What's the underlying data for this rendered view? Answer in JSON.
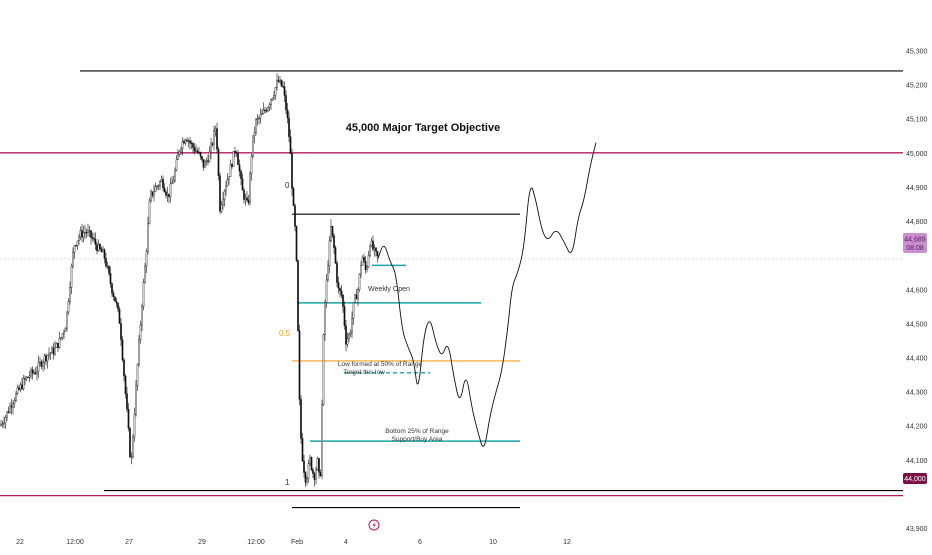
{
  "colors": {
    "background": "#ffffff",
    "candle": "#111111",
    "target_line": "#b5195e",
    "level_line": "#000000",
    "teal": "#1aa3a3",
    "fib_half": "#f0a020",
    "dashed_low": "#1aa3a3",
    "axis_text": "#333333",
    "price_badge_bg": "#c98fcf",
    "price_badge_text": "#5a1a60",
    "target_badge_bg": "#7a1046",
    "projection": "#111111"
  },
  "chart_data": {
    "type": "candlestick",
    "title": "",
    "x_ticks": [
      "22",
      "12:00",
      "27",
      "29",
      "12:00",
      "Feb",
      "4",
      "6",
      "10",
      "12"
    ],
    "y_ticks": [
      45300,
      45200,
      45100,
      45000,
      44900,
      44800,
      44700,
      44600,
      44500,
      44400,
      44300,
      44200,
      44100,
      44000,
      43900
    ],
    "y_tick_labels": [
      "45,300",
      "45,200",
      "45,100",
      "45,000",
      "44,900",
      "44,800",
      "",
      "44,600",
      "44,500",
      "44,400",
      "44,300",
      "44,200",
      "44,100",
      "",
      "43,900"
    ],
    "ylim": [
      43865,
      45360
    ],
    "current_price": {
      "value": 44689,
      "label": "44,689",
      "timer": "08:08"
    },
    "target_price_badge": {
      "value": 44000,
      "label": "44,000"
    },
    "series": [
      {
        "name": "",
        "keypoints": [
          [
            0,
            44200
          ],
          [
            6,
            44230
          ],
          [
            12,
            44270
          ],
          [
            18,
            44300
          ],
          [
            24,
            44330
          ],
          [
            30,
            44350
          ],
          [
            36,
            44360
          ],
          [
            42,
            44390
          ],
          [
            48,
            44410
          ],
          [
            54,
            44420
          ],
          [
            60,
            44450
          ],
          [
            66,
            44500
          ],
          [
            70,
            44620
          ],
          [
            74,
            44730
          ],
          [
            80,
            44760
          ],
          [
            86,
            44770
          ],
          [
            92,
            44750
          ],
          [
            98,
            44720
          ],
          [
            104,
            44700
          ],
          [
            108,
            44650
          ],
          [
            112,
            44600
          ],
          [
            116,
            44560
          ],
          [
            120,
            44500
          ],
          [
            124,
            44350
          ],
          [
            128,
            44200
          ],
          [
            131,
            44080
          ],
          [
            134,
            44220
          ],
          [
            138,
            44400
          ],
          [
            142,
            44560
          ],
          [
            146,
            44700
          ],
          [
            150,
            44870
          ],
          [
            156,
            44900
          ],
          [
            162,
            44920
          ],
          [
            168,
            44870
          ],
          [
            174,
            44930
          ],
          [
            180,
            45020
          ],
          [
            186,
            45050
          ],
          [
            192,
            45020
          ],
          [
            198,
            45000
          ],
          [
            204,
            44960
          ],
          [
            210,
            45000
          ],
          [
            216,
            45080
          ],
          [
            220,
            44840
          ],
          [
            224,
            44890
          ],
          [
            230,
            44950
          ],
          [
            236,
            45020
          ],
          [
            242,
            44890
          ],
          [
            248,
            44840
          ],
          [
            252,
            45020
          ],
          [
            256,
            45090
          ],
          [
            262,
            45110
          ],
          [
            268,
            45140
          ],
          [
            274,
            45180
          ],
          [
            278,
            45210
          ],
          [
            283,
            45190
          ],
          [
            287,
            45110
          ],
          [
            290,
            45020
          ],
          [
            293,
            44850
          ],
          [
            296,
            44740
          ],
          [
            300,
            44200
          ],
          [
            303,
            44090
          ],
          [
            306,
            44040
          ],
          [
            310,
            44100
          ],
          [
            314,
            44050
          ],
          [
            318,
            44100
          ],
          [
            320,
            44000
          ],
          [
            324,
            44520
          ],
          [
            328,
            44680
          ],
          [
            331,
            44780
          ],
          [
            334,
            44720
          ],
          [
            338,
            44600
          ],
          [
            342,
            44580
          ],
          [
            346,
            44450
          ],
          [
            350,
            44470
          ],
          [
            354,
            44560
          ],
          [
            358,
            44600
          ],
          [
            362,
            44700
          ],
          [
            366,
            44650
          ],
          [
            370,
            44740
          ],
          [
            374,
            44710
          ],
          [
            378,
            44690
          ]
        ]
      }
    ],
    "projection_path": [
      [
        378,
        44690
      ],
      [
        384,
        44740
      ],
      [
        390,
        44680
      ],
      [
        396,
        44650
      ],
      [
        402,
        44480
      ],
      [
        408,
        44430
      ],
      [
        414,
        44390
      ],
      [
        418,
        44290
      ],
      [
        424,
        44470
      ],
      [
        430,
        44520
      ],
      [
        436,
        44440
      ],
      [
        442,
        44400
      ],
      [
        448,
        44450
      ],
      [
        454,
        44340
      ],
      [
        460,
        44260
      ],
      [
        466,
        44360
      ],
      [
        472,
        44250
      ],
      [
        478,
        44180
      ],
      [
        484,
        44120
      ],
      [
        490,
        44230
      ],
      [
        496,
        44300
      ],
      [
        502,
        44360
      ],
      [
        508,
        44490
      ],
      [
        512,
        44610
      ],
      [
        518,
        44650
      ],
      [
        524,
        44720
      ],
      [
        530,
        44920
      ],
      [
        536,
        44860
      ],
      [
        542,
        44770
      ],
      [
        548,
        44740
      ],
      [
        556,
        44780
      ],
      [
        564,
        44740
      ],
      [
        572,
        44690
      ],
      [
        578,
        44810
      ],
      [
        584,
        44860
      ],
      [
        590,
        44960
      ],
      [
        596,
        45030
      ]
    ],
    "levels": [
      {
        "name": "top-line",
        "value": 45240,
        "x1": 80,
        "x2": 903,
        "color": "level_line"
      },
      {
        "name": "major-target",
        "value": 45000,
        "x1": 0,
        "x2": 903,
        "color": "target_line"
      },
      {
        "name": "range-high",
        "value": 44820,
        "x1": 292,
        "x2": 520,
        "color": "level_line"
      },
      {
        "name": "teal-upper",
        "value": 44670,
        "x1": 372,
        "x2": 406,
        "color": "teal"
      },
      {
        "name": "weekly-open",
        "value": 44560,
        "x1": 297,
        "x2": 481,
        "color": "teal"
      },
      {
        "name": "fib-half",
        "value": 44390,
        "x1": 292,
        "x2": 520,
        "color": "fib_half"
      },
      {
        "name": "bottom-25",
        "value": 44155,
        "x1": 310,
        "x2": 520,
        "color": "teal"
      },
      {
        "name": "range-low",
        "value": 44010,
        "x1": 104,
        "x2": 903,
        "color": "level_line"
      },
      {
        "name": "magenta-low",
        "value": 43995,
        "x1": 0,
        "x2": 903,
        "color": "target_line"
      },
      {
        "name": "range-bottom",
        "value": 43960,
        "x1": 292,
        "x2": 520,
        "color": "level_line"
      }
    ],
    "dashed_level": {
      "value": 44355,
      "x1": 344,
      "x2": 430
    },
    "annotations": {
      "major_target": "45,000 Major Target Objective",
      "fib_zero": "0",
      "fib_half": "0.5",
      "fib_one": "1",
      "weekly_open": "Weekly Open",
      "low_formed_line1": "Low formed at 50% of Range",
      "low_formed_line2": "Target this low",
      "bottom_line1": "Bottom 25% of Range",
      "bottom_line2": "Support/Buy Area"
    }
  }
}
